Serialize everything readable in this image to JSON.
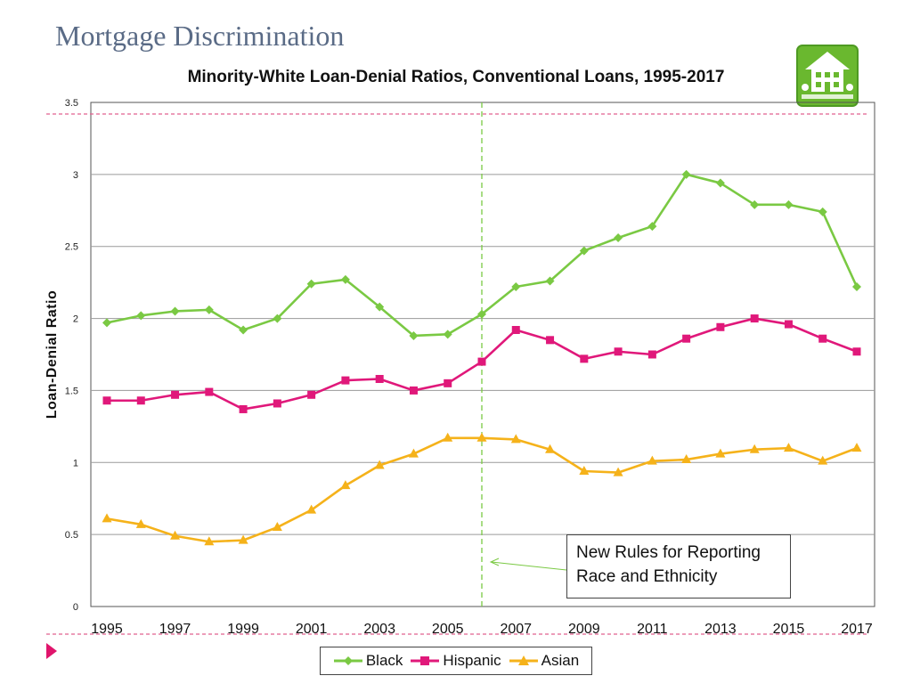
{
  "page": {
    "title": "Mortgage Discrimination"
  },
  "icons": {
    "house": "house-icon",
    "next": "play-triangle-icon"
  },
  "colors": {
    "black_series": "#7ac943",
    "hispanic_series": "#e0187a",
    "asian_series": "#f5b21a",
    "title_color": "#5a6b86",
    "reference_line": "#e0608f",
    "divider_line": "#7ac943",
    "house_bg": "#6ab82f"
  },
  "annotation": {
    "line1": "New Rules for Reporting",
    "line2": "Race and Ethnicity"
  },
  "chart_data": {
    "type": "line",
    "title": "Minority-White Loan-Denial Ratios, Conventional Loans, 1995-2017",
    "xlabel": "",
    "ylabel": "Loan-Denial Ratio",
    "ylim": [
      0,
      3.5
    ],
    "yticks": [
      "0",
      "0.5",
      "1",
      "1.5",
      "2",
      "2.5",
      "3",
      "3.5"
    ],
    "x": [
      1995,
      1996,
      1997,
      1998,
      1999,
      2000,
      2001,
      2002,
      2003,
      2004,
      2005,
      2006,
      2007,
      2008,
      2009,
      2010,
      2011,
      2012,
      2013,
      2014,
      2015,
      2016,
      2017
    ],
    "xticks": [
      "1995",
      "1997",
      "1999",
      "2001",
      "2003",
      "2005",
      "2007",
      "2009",
      "2011",
      "2013",
      "2015",
      "2017"
    ],
    "grid": true,
    "legend_position": "bottom",
    "vertical_marker_x": 2006,
    "series": [
      {
        "name": "Black",
        "marker": "diamond",
        "values": [
          1.97,
          2.02,
          2.05,
          2.06,
          1.92,
          2.0,
          2.24,
          2.27,
          2.08,
          1.88,
          1.89,
          2.03,
          2.22,
          2.26,
          2.47,
          2.56,
          2.64,
          3.0,
          2.94,
          2.79,
          2.79,
          2.74,
          2.22
        ]
      },
      {
        "name": "Hispanic",
        "marker": "square",
        "values": [
          1.43,
          1.43,
          1.47,
          1.49,
          1.37,
          1.41,
          1.47,
          1.57,
          1.58,
          1.5,
          1.55,
          1.7,
          1.92,
          1.85,
          1.72,
          1.77,
          1.75,
          1.86,
          1.94,
          2.0,
          1.96,
          1.86,
          1.77
        ]
      },
      {
        "name": "Asian",
        "marker": "triangle",
        "values": [
          0.61,
          0.57,
          0.49,
          0.45,
          0.46,
          0.55,
          0.67,
          0.84,
          0.98,
          1.06,
          1.17,
          1.17,
          1.16,
          1.09,
          0.94,
          0.93,
          1.01,
          1.02,
          1.06,
          1.09,
          1.1,
          1.01,
          1.1
        ]
      }
    ]
  }
}
